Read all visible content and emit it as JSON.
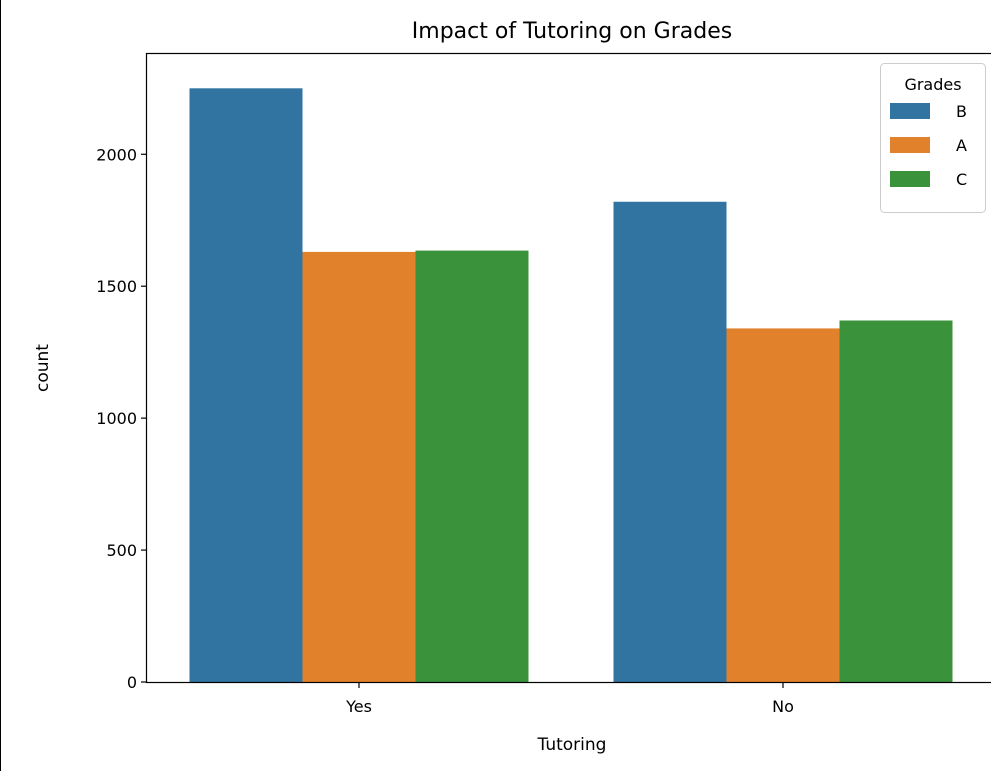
{
  "chart_data": {
    "type": "bar",
    "title": "Impact of Tutoring on Grades",
    "xlabel": "Tutoring",
    "ylabel": "count",
    "categories": [
      "Yes",
      "No"
    ],
    "series": [
      {
        "name": "B",
        "values": [
          2250,
          1820
        ],
        "color": "#3274a1"
      },
      {
        "name": "A",
        "values": [
          1630,
          1340
        ],
        "color": "#e1812c"
      },
      {
        "name": "C",
        "values": [
          1635,
          1370
        ],
        "color": "#3a923a"
      }
    ],
    "ylim": [
      0,
      2380
    ],
    "yticks": [
      0,
      500,
      1000,
      1500,
      2000
    ],
    "grid": false,
    "legend": {
      "title": "Grades",
      "placement": "top-right"
    }
  }
}
